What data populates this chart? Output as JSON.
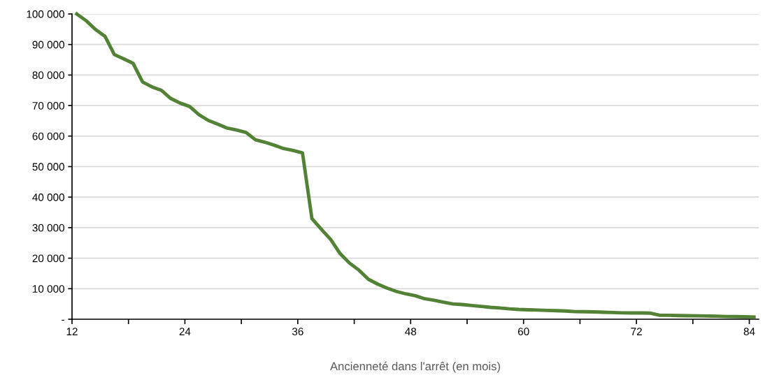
{
  "chart_data": {
    "type": "line",
    "xlabel": "Ancienneté dans l'arrêt (en mois)",
    "x": [
      12.5,
      13.5,
      14.5,
      15.5,
      16.5,
      17.5,
      18.5,
      19.5,
      20.5,
      21.5,
      22.5,
      23.5,
      24.5,
      25.5,
      26.5,
      27.5,
      28.5,
      29.5,
      30.5,
      31.5,
      32.5,
      33.5,
      34.5,
      35.5,
      36.5,
      37.5,
      38.5,
      39.5,
      40.5,
      41.5,
      42.5,
      43.5,
      44.5,
      45.5,
      46.5,
      47.5,
      48.5,
      49.5,
      50.5,
      51.5,
      52.5,
      53.5,
      54.5,
      55.5,
      56.5,
      57.5,
      58.5,
      59.5,
      60.5,
      61.5,
      62.5,
      63.5,
      64.5,
      65.5,
      66.5,
      67.5,
      68.5,
      69.5,
      70.5,
      71.5,
      72.5,
      73.5,
      74.5,
      75.5,
      76.5,
      77.5,
      78.5,
      79.5,
      80.5,
      81.5,
      82.5,
      83.5,
      84.5
    ],
    "series": [
      {
        "color": "#538135",
        "values": [
          100000,
          97800,
          94900,
          92700,
          86700,
          85300,
          83800,
          77700,
          76100,
          75000,
          72300,
          70800,
          69700,
          67000,
          65100,
          63900,
          62600,
          62000,
          61200,
          58800,
          58000,
          57000,
          55900,
          55300,
          54500,
          33000,
          29500,
          26100,
          21500,
          18400,
          16100,
          13100,
          11500,
          10200,
          9100,
          8300,
          7700,
          6700,
          6200,
          5600,
          5000,
          4800,
          4500,
          4200,
          3900,
          3700,
          3400,
          3200,
          3100,
          3000,
          2900,
          2800,
          2700,
          2500,
          2450,
          2400,
          2300,
          2200,
          2100,
          2070,
          2050,
          2000,
          1300,
          1300,
          1200,
          1150,
          1100,
          1050,
          1000,
          900,
          850,
          800,
          700
        ]
      }
    ],
    "xlim": [
      12,
      85
    ],
    "xticks": [
      12,
      {
        "value": 18,
        "label": null
      },
      24,
      {
        "value": 30,
        "label": null
      },
      36,
      {
        "value": 42,
        "label": null
      },
      48,
      {
        "value": 54,
        "label": null
      },
      60,
      {
        "value": 66,
        "label": null
      },
      72,
      {
        "value": 78,
        "label": null
      },
      84
    ],
    "ylim": [
      0,
      100000
    ],
    "yticks": [
      {
        "value": 0,
        "label": "-"
      },
      {
        "value": 10000,
        "label": "10 000"
      },
      {
        "value": 20000,
        "label": "20 000"
      },
      {
        "value": 30000,
        "label": "30 000"
      },
      {
        "value": 40000,
        "label": "40 000"
      },
      {
        "value": 50000,
        "label": "50 000"
      },
      {
        "value": 60000,
        "label": "60 000"
      },
      {
        "value": 70000,
        "label": "70 000"
      },
      {
        "value": 80000,
        "label": "80 000"
      },
      {
        "value": 90000,
        "label": "90 000"
      },
      {
        "value": 100000,
        "label": "100 000"
      }
    ],
    "grid": "y",
    "line_style": "solid",
    "marker": "none"
  }
}
